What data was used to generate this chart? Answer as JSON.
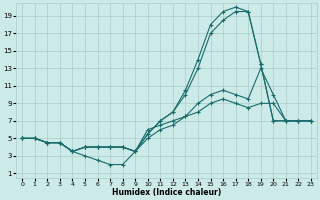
{
  "xlabel": "Humidex (Indice chaleur)",
  "bg_color": "#cceae8",
  "grid_color": "#aacccc",
  "line_color": "#1a6b6b",
  "xlim": [
    -0.5,
    23.5
  ],
  "ylim": [
    0.5,
    20.5
  ],
  "xticks": [
    0,
    1,
    2,
    3,
    4,
    5,
    6,
    7,
    8,
    9,
    10,
    11,
    12,
    13,
    14,
    15,
    16,
    17,
    18,
    19,
    20,
    21,
    22,
    23
  ],
  "yticks": [
    1,
    3,
    5,
    7,
    9,
    11,
    13,
    15,
    17,
    19
  ],
  "lines": [
    {
      "x": [
        0,
        1,
        2,
        3,
        4,
        5,
        6,
        7,
        8,
        9,
        10,
        11,
        12,
        13,
        14,
        15,
        16,
        17,
        18,
        19,
        20,
        21,
        22,
        23
      ],
      "y": [
        5,
        5,
        4.5,
        4.5,
        3.5,
        3,
        2.5,
        2,
        2,
        3.5,
        6,
        6.5,
        7,
        7.5,
        8,
        9,
        9.5,
        9,
        8.5,
        9,
        9,
        7,
        7,
        7
      ]
    },
    {
      "x": [
        0,
        1,
        2,
        3,
        4,
        5,
        6,
        7,
        8,
        9,
        10,
        11,
        12,
        13,
        14,
        15,
        16,
        17,
        18,
        19,
        20,
        21,
        22,
        23
      ],
      "y": [
        5,
        5,
        4.5,
        4.5,
        3.5,
        4,
        4,
        4,
        4,
        3.5,
        5,
        6,
        6.5,
        7.5,
        9,
        10,
        10.5,
        10,
        9.5,
        13,
        10,
        7,
        7,
        7
      ]
    },
    {
      "x": [
        0,
        1,
        2,
        3,
        4,
        5,
        6,
        7,
        8,
        9,
        10,
        11,
        12,
        13,
        14,
        15,
        16,
        17,
        18,
        19,
        20,
        21,
        22,
        23
      ],
      "y": [
        5,
        5,
        4.5,
        4.5,
        3.5,
        4,
        4,
        4,
        4,
        3.5,
        5.5,
        7,
        8,
        10,
        13,
        17,
        18.5,
        19.5,
        19.5,
        13.5,
        7,
        7,
        7,
        7
      ]
    },
    {
      "x": [
        0,
        1,
        2,
        3,
        4,
        5,
        6,
        7,
        8,
        9,
        10,
        11,
        12,
        13,
        14,
        15,
        16,
        17,
        18,
        19,
        20,
        21,
        22,
        23
      ],
      "y": [
        5,
        5,
        4.5,
        4.5,
        3.5,
        4,
        4,
        4,
        4,
        3.5,
        5.5,
        7,
        8,
        10.5,
        14,
        18,
        19.5,
        20,
        19.5,
        13.5,
        7,
        7,
        7,
        7
      ]
    }
  ]
}
